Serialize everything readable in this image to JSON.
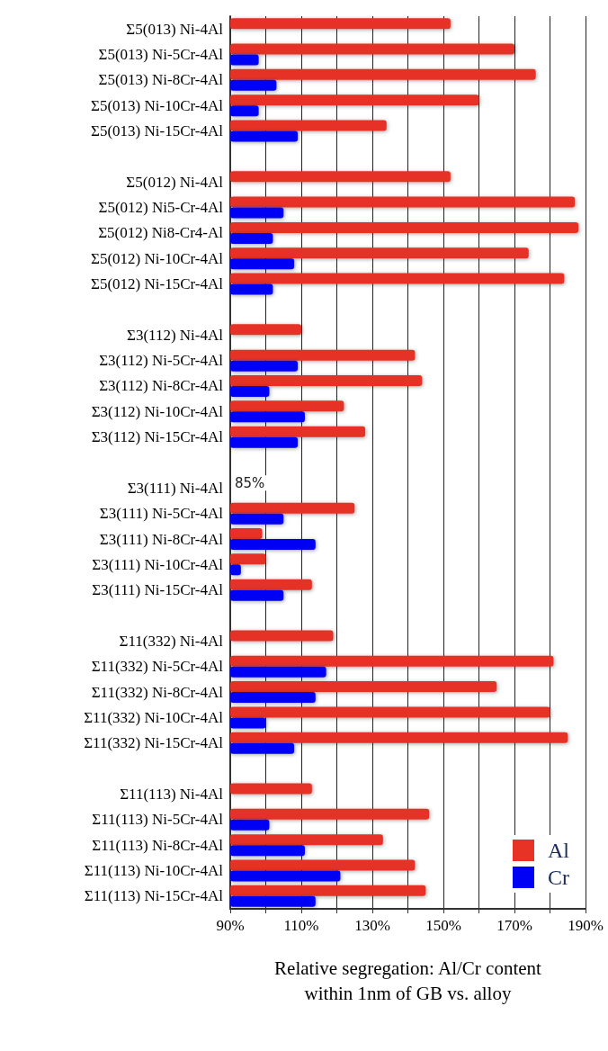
{
  "chart_data": {
    "type": "bar",
    "orientation": "horizontal",
    "xlabel": "Relative segregation: Al/Cr content within 1nm of GB vs. alloy",
    "categories": [
      "Σ5(013) Ni-4Al",
      "Σ5(013) Ni-5Cr-4Al",
      "Σ5(013) Ni-8Cr-4Al",
      "Σ5(013) Ni-10Cr-4Al",
      "Σ5(013) Ni-15Cr-4Al",
      null,
      "Σ5(012) Ni-4Al",
      "Σ5(012) Ni5-Cr-4Al",
      "Σ5(012) Ni8-Cr4-Al",
      "Σ5(012) Ni-10Cr-4Al",
      "Σ5(012) Ni-15Cr-4Al",
      null,
      "Σ3(112) Ni-4Al",
      "Σ3(112) Ni-5Cr-4Al",
      "Σ3(112) Ni-8Cr-4Al",
      "Σ3(112) Ni-10Cr-4Al",
      "Σ3(112) Ni-15Cr-4Al",
      null,
      "Σ3(111) Ni-4Al",
      "Σ3(111) Ni-5Cr-4Al",
      "Σ3(111) Ni-8Cr-4Al",
      "Σ3(111) Ni-10Cr-4Al",
      "Σ3(111) Ni-15Cr-4Al",
      null,
      "Σ11(332) Ni-4Al",
      "Σ11(332) Ni-5Cr-4Al",
      "Σ11(332) Ni-8Cr-4Al",
      "Σ11(332) Ni-10Cr-4Al",
      "Σ11(332) Ni-15Cr-4Al",
      null,
      "Σ11(113) Ni-4Al",
      "Σ11(113) Ni-5Cr-4Al",
      "Σ11(113) Ni-8Cr-4Al",
      "Σ11(113) Ni-10Cr-4Al",
      "Σ11(113) Ni-15Cr-4Al"
    ],
    "series": [
      {
        "name": "Al",
        "color": "#e63325",
        "values": [
          152,
          170,
          176,
          160,
          134,
          null,
          152,
          187,
          188,
          174,
          184,
          null,
          110,
          142,
          144,
          122,
          128,
          null,
          null,
          125,
          99,
          100,
          113,
          null,
          119,
          181,
          165,
          180,
          185,
          null,
          113,
          146,
          133,
          142,
          145
        ]
      },
      {
        "name": "Cr",
        "color": "#0000f5",
        "values": [
          null,
          98,
          103,
          98,
          109,
          null,
          null,
          105,
          102,
          108,
          102,
          null,
          null,
          109,
          101,
          111,
          109,
          null,
          null,
          105,
          114,
          93,
          105,
          null,
          null,
          117,
          114,
          100,
          108,
          null,
          null,
          101,
          111,
          121,
          114
        ]
      }
    ],
    "annotations": [
      "85%"
    ],
    "xlim": [
      90,
      190
    ],
    "xticks": [
      {
        "value": 90,
        "label": "90%"
      },
      {
        "value": 100,
        "label": null
      },
      {
        "value": 110,
        "label": "110%"
      },
      {
        "value": 120,
        "label": null
      },
      {
        "value": 130,
        "label": "130%"
      },
      {
        "value": 140,
        "label": null
      },
      {
        "value": 150,
        "label": "150%"
      },
      {
        "value": 160,
        "label": null
      },
      {
        "value": 170,
        "label": "170%"
      },
      {
        "value": 180,
        "label": null
      },
      {
        "value": 190,
        "label": "190%"
      }
    ],
    "grid": "x",
    "legend": "bottom right"
  }
}
